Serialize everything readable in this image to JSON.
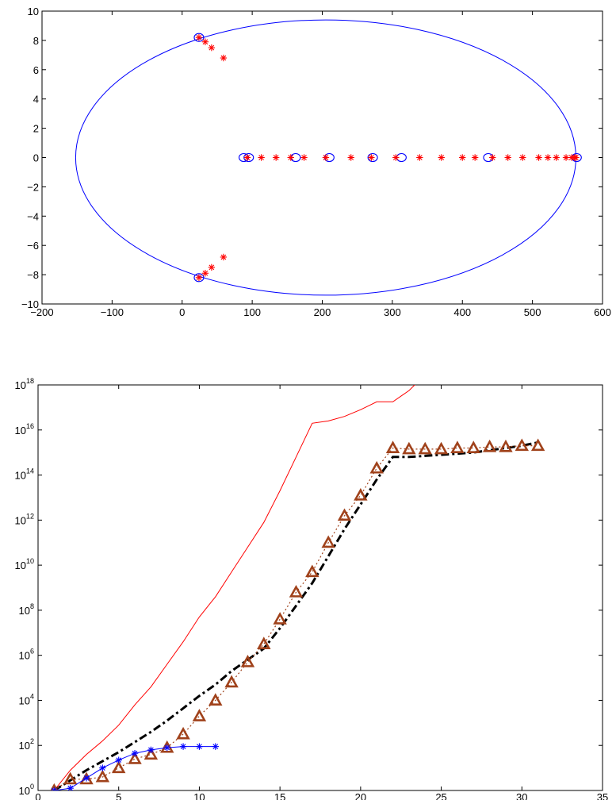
{
  "chart_data": [
    {
      "type": "scatter",
      "xlim": [
        -200,
        600
      ],
      "ylim": [
        -10,
        10
      ],
      "xticks": [
        -200,
        -100,
        0,
        100,
        200,
        300,
        400,
        500,
        600
      ],
      "yticks": [
        -10,
        -8,
        -6,
        -4,
        -2,
        0,
        2,
        4,
        6,
        8,
        10
      ],
      "xtick_labels": [
        "−200",
        "−100",
        "0",
        "100",
        "200",
        "300",
        "400",
        "500",
        "600"
      ],
      "ytick_labels": [
        "−10",
        "−8",
        "−6",
        "−4",
        "−2",
        "0",
        "2",
        "4",
        "6",
        "8",
        "10"
      ],
      "grid": false,
      "ellipse": {
        "center": [
          205,
          0
        ],
        "semi_axis_x": 357,
        "semi_axis_y": 9.4,
        "color": "#0000ff"
      },
      "series": [
        {
          "marker": "circle",
          "color": "#0000ff",
          "points": [
            [
              24,
              8.2
            ],
            [
              24,
              -8.2
            ],
            [
              88,
              0
            ],
            [
              95,
              0
            ],
            [
              162,
              0
            ],
            [
              210,
              0
            ],
            [
              272,
              0
            ],
            [
              313,
              0
            ],
            [
              437,
              0
            ],
            [
              563,
              0
            ]
          ]
        },
        {
          "marker": "asterisk",
          "color": "#ff0000",
          "points": [
            [
              24,
              8.2
            ],
            [
              33,
              7.9
            ],
            [
              42,
              7.5
            ],
            [
              59,
              6.8
            ],
            [
              24,
              -8.2
            ],
            [
              33,
              -7.9
            ],
            [
              42,
              -7.5
            ],
            [
              59,
              -6.8
            ],
            [
              93,
              0
            ],
            [
              113,
              0
            ],
            [
              134,
              0
            ],
            [
              155,
              0
            ],
            [
              174,
              0
            ],
            [
              205,
              0
            ],
            [
              241,
              0
            ],
            [
              270,
              0
            ],
            [
              305,
              0
            ],
            [
              339,
              0
            ],
            [
              370,
              0
            ],
            [
              400,
              0
            ],
            [
              418,
              0
            ],
            [
              443,
              0
            ],
            [
              465,
              0
            ],
            [
              486,
              0
            ],
            [
              509,
              0
            ],
            [
              522,
              0
            ],
            [
              534,
              0
            ],
            [
              548,
              0
            ],
            [
              556,
              0
            ],
            [
              560,
              0
            ],
            [
              562,
              0
            ]
          ]
        }
      ]
    },
    {
      "type": "line",
      "yscale": "log",
      "xlim": [
        0,
        35
      ],
      "ylim_exponent": [
        0,
        18
      ],
      "xticks": [
        0,
        5,
        10,
        15,
        20,
        25,
        30,
        35
      ],
      "xtick_labels": [
        "0",
        "5",
        "10",
        "15",
        "20",
        "25",
        "30",
        "35"
      ],
      "ytick_exponents": [
        0,
        2,
        4,
        6,
        8,
        10,
        12,
        14,
        16,
        18
      ],
      "ytick_base": "10",
      "ytick_exponent_labels": [
        "0",
        "2",
        "4",
        "6",
        "8",
        "10",
        "12",
        "14",
        "16",
        "18"
      ],
      "grid": false,
      "series": [
        {
          "style": "solid",
          "color": "#ff0000",
          "marker": "none",
          "x": [
            1,
            2,
            3,
            4,
            5,
            6,
            7,
            8,
            9,
            10,
            11,
            12,
            13,
            14,
            15,
            16,
            17,
            18,
            19,
            20,
            21,
            22,
            23,
            24,
            25,
            26,
            27,
            28,
            29,
            30,
            31
          ],
          "log10_y": [
            0,
            0.9,
            1.6,
            2.2,
            2.9,
            3.8,
            4.6,
            5.6,
            6.6,
            7.7,
            8.6,
            9.7,
            10.8,
            11.9,
            13.3,
            14.8,
            16.3,
            16.4,
            16.6,
            16.9,
            17.25,
            17.25,
            17.75,
            18.45,
            18.45,
            18.47,
            18.48,
            18.5,
            18.55,
            18.62,
            18.8
          ]
        },
        {
          "style": "dashdot",
          "color": "#000000",
          "marker": "none",
          "x": [
            1,
            2,
            3,
            4,
            5,
            6,
            7,
            8,
            9,
            10,
            11,
            12,
            13,
            14,
            15,
            16,
            17,
            18,
            19,
            20,
            21,
            22,
            23,
            24,
            25,
            26,
            27,
            28,
            29,
            30,
            31
          ],
          "log10_y": [
            0,
            0.45,
            0.9,
            1.3,
            1.7,
            2.15,
            2.6,
            3.1,
            3.65,
            4.2,
            4.7,
            5.3,
            5.8,
            6.3,
            7.2,
            8.2,
            9.2,
            10.4,
            11.6,
            12.7,
            13.8,
            14.8,
            14.8,
            14.85,
            14.9,
            14.95,
            15.0,
            15.1,
            15.2,
            15.3,
            15.45
          ]
        },
        {
          "style": "dotted",
          "color": "#a0421b",
          "marker": "triangle",
          "x": [
            1,
            2,
            3,
            4,
            5,
            6,
            7,
            8,
            9,
            10,
            11,
            12,
            13,
            14,
            15,
            16,
            17,
            18,
            19,
            20,
            21,
            22,
            23,
            24,
            25,
            26,
            27,
            28,
            29,
            30,
            31
          ],
          "log10_y": [
            0,
            0.5,
            0.5,
            0.6,
            1,
            1.4,
            1.6,
            1.9,
            2.5,
            3.3,
            4,
            4.8,
            5.7,
            6.5,
            7.6,
            8.8,
            9.7,
            11,
            12.2,
            13.1,
            14.3,
            15.2,
            15.15,
            15.15,
            15.15,
            15.2,
            15.2,
            15.25,
            15.25,
            15.3,
            15.3
          ]
        },
        {
          "style": "solid",
          "color": "#0000ff",
          "marker": "asterisk",
          "x": [
            1,
            2,
            3,
            4,
            5,
            6,
            7,
            8,
            9,
            10,
            11
          ],
          "log10_y": [
            0,
            0.1,
            0.55,
            1.0,
            1.35,
            1.65,
            1.8,
            1.9,
            1.95,
            1.95,
            1.95
          ]
        }
      ]
    }
  ]
}
